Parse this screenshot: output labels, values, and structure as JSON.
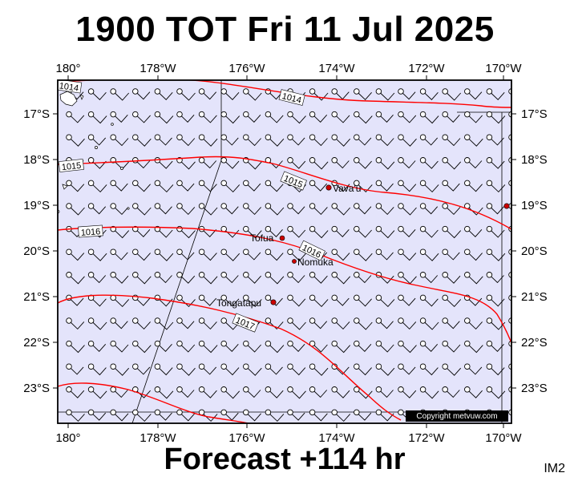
{
  "title": "1900 TOT Fri 11 Jul 2025",
  "footer": "Forecast +114 hr",
  "corner_label": "IM2",
  "copyright": "Copyright metvuw.com",
  "colors": {
    "ocean": "#e4e4fb",
    "isobar": "#ff0000",
    "place_dot": "#cc0000",
    "frame": "#000000"
  },
  "axes": {
    "lon_labels": [
      "180°",
      "178°W",
      "176°W",
      "174°W",
      "172°W",
      "170°W"
    ],
    "lat_labels": [
      "17°S",
      "18°S",
      "19°S",
      "20°S",
      "21°S",
      "22°S",
      "23°S"
    ]
  },
  "isobars": [
    {
      "label": "1014"
    },
    {
      "label": "1014"
    },
    {
      "label": "1015"
    },
    {
      "label": "1015"
    },
    {
      "label": "1016"
    },
    {
      "label": "1016"
    },
    {
      "label": "1017"
    }
  ],
  "places": [
    "Vava'u",
    "Tofua",
    "Nomuka",
    "Tongatapu"
  ]
}
